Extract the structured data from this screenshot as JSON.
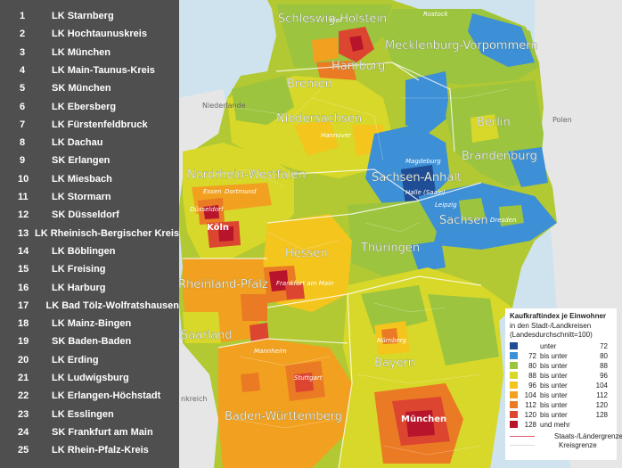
{
  "ranking": [
    {
      "rank": "1",
      "name": "LK Starnberg"
    },
    {
      "rank": "2",
      "name": "LK Hochtaunuskreis"
    },
    {
      "rank": "3",
      "name": "LK München"
    },
    {
      "rank": "4",
      "name": "LK Main-Taunus-Kreis"
    },
    {
      "rank": "5",
      "name": "SK München"
    },
    {
      "rank": "6",
      "name": "LK Ebersberg"
    },
    {
      "rank": "7",
      "name": "LK Fürstenfeldbruck"
    },
    {
      "rank": "8",
      "name": "LK Dachau"
    },
    {
      "rank": "9",
      "name": "SK Erlangen"
    },
    {
      "rank": "10",
      "name": "LK Miesbach"
    },
    {
      "rank": "11",
      "name": "LK Stormarn"
    },
    {
      "rank": "12",
      "name": "SK Düsseldorf"
    },
    {
      "rank": "13",
      "name": "LK Rheinisch-Bergischer Kreis"
    },
    {
      "rank": "14",
      "name": "LK Böblingen"
    },
    {
      "rank": "15",
      "name": "LK Freising"
    },
    {
      "rank": "16",
      "name": "LK Harburg"
    },
    {
      "rank": "17",
      "name": "LK Bad Tölz-Wolfratshausen"
    },
    {
      "rank": "18",
      "name": "LK Mainz-Bingen"
    },
    {
      "rank": "19",
      "name": "SK Baden-Baden"
    },
    {
      "rank": "20",
      "name": "LK Erding"
    },
    {
      "rank": "21",
      "name": "LK Ludwigsburg"
    },
    {
      "rank": "22",
      "name": "LK Erlangen-Höchstadt"
    },
    {
      "rank": "23",
      "name": "LK Esslingen"
    },
    {
      "rank": "24",
      "name": "SK Frankfurt am Main"
    },
    {
      "rank": "25",
      "name": "LK Rhein-Pfalz-Kreis"
    }
  ],
  "map": {
    "states": {
      "schleswig_holstein": "Schleswig-Holstein",
      "mecklenburg": "Mecklenburg-Vorpommern",
      "hamburg": "Hamburg",
      "bremen": "Bremen",
      "niedersachsen": "Niedersachsen",
      "berlin": "Berlin",
      "brandenburg": "Brandenburg",
      "nrw": "Nordrhein-Westfalen",
      "sachsen_anhalt": "Sachsen-Anhalt",
      "sachsen": "Sachsen",
      "thueringen": "Thüringen",
      "hessen": "Hessen",
      "rlp": "Rheinland-Pfalz",
      "saarland": "Saarland",
      "bayern": "Bayern",
      "bw": "Baden-Württemberg"
    },
    "cities": {
      "koeln": "Köln",
      "frankfurt": "Frankfurt am Main",
      "muenchen": "München",
      "stuttgart": "Stuttgart",
      "essen": "Essen",
      "dortmund": "Dortmund",
      "duesseldorf": "Düsseldorf",
      "hannover": "Hannover",
      "magdeburg": "Magdeburg",
      "leipzig": "Leipzig",
      "dresden": "Dresden",
      "halle": "Halle (Saale)",
      "kiel": "Kiel",
      "rostock": "Rostock",
      "nuernberg": "Nürnberg",
      "mannheim": "Mannheim"
    },
    "neighbors": {
      "polen": "Polen",
      "niederlande": "Niederlande",
      "frankreich": "nkreich"
    },
    "colors": {
      "water": "#cfe3ee",
      "foreign": "#e6e6e6",
      "unter72": "#1f4e96",
      "b72_80": "#3d8fd6",
      "b80_88": "#9cc43e",
      "b88_96": "#d7d829",
      "b96_104": "#f3c51d",
      "b104_112": "#f2a01f",
      "b112_120": "#ea7a24",
      "b120_128": "#dc4530",
      "b128plus": "#b8142b"
    }
  },
  "legend": {
    "title": "Kaufkraftindex je Einwohner",
    "sub1": "in den Stadt-/Landkreisen",
    "sub2": "(Landesdurchschnitt=100)",
    "rows": [
      {
        "from": "",
        "word": "unter",
        "to": "72",
        "color": "#1f4e96"
      },
      {
        "from": "72",
        "word": "bis unter",
        "to": "80",
        "color": "#3d8fd6"
      },
      {
        "from": "80",
        "word": "bis unter",
        "to": "88",
        "color": "#9cc43e"
      },
      {
        "from": "88",
        "word": "bis unter",
        "to": "96",
        "color": "#d7d829"
      },
      {
        "from": "96",
        "word": "bis unter",
        "to": "104",
        "color": "#f3c51d"
      },
      {
        "from": "104",
        "word": "bis unter",
        "to": "112",
        "color": "#f2a01f"
      },
      {
        "from": "112",
        "word": "bis unter",
        "to": "120",
        "color": "#ea7a24"
      },
      {
        "from": "120",
        "word": "bis unter",
        "to": "128",
        "color": "#dc4530"
      },
      {
        "from": "128",
        "word": "und mehr",
        "to": "",
        "color": "#b8142b"
      }
    ],
    "border_state": "Staats-/Ländergrenze",
    "border_district": "Kreisgrenze"
  }
}
